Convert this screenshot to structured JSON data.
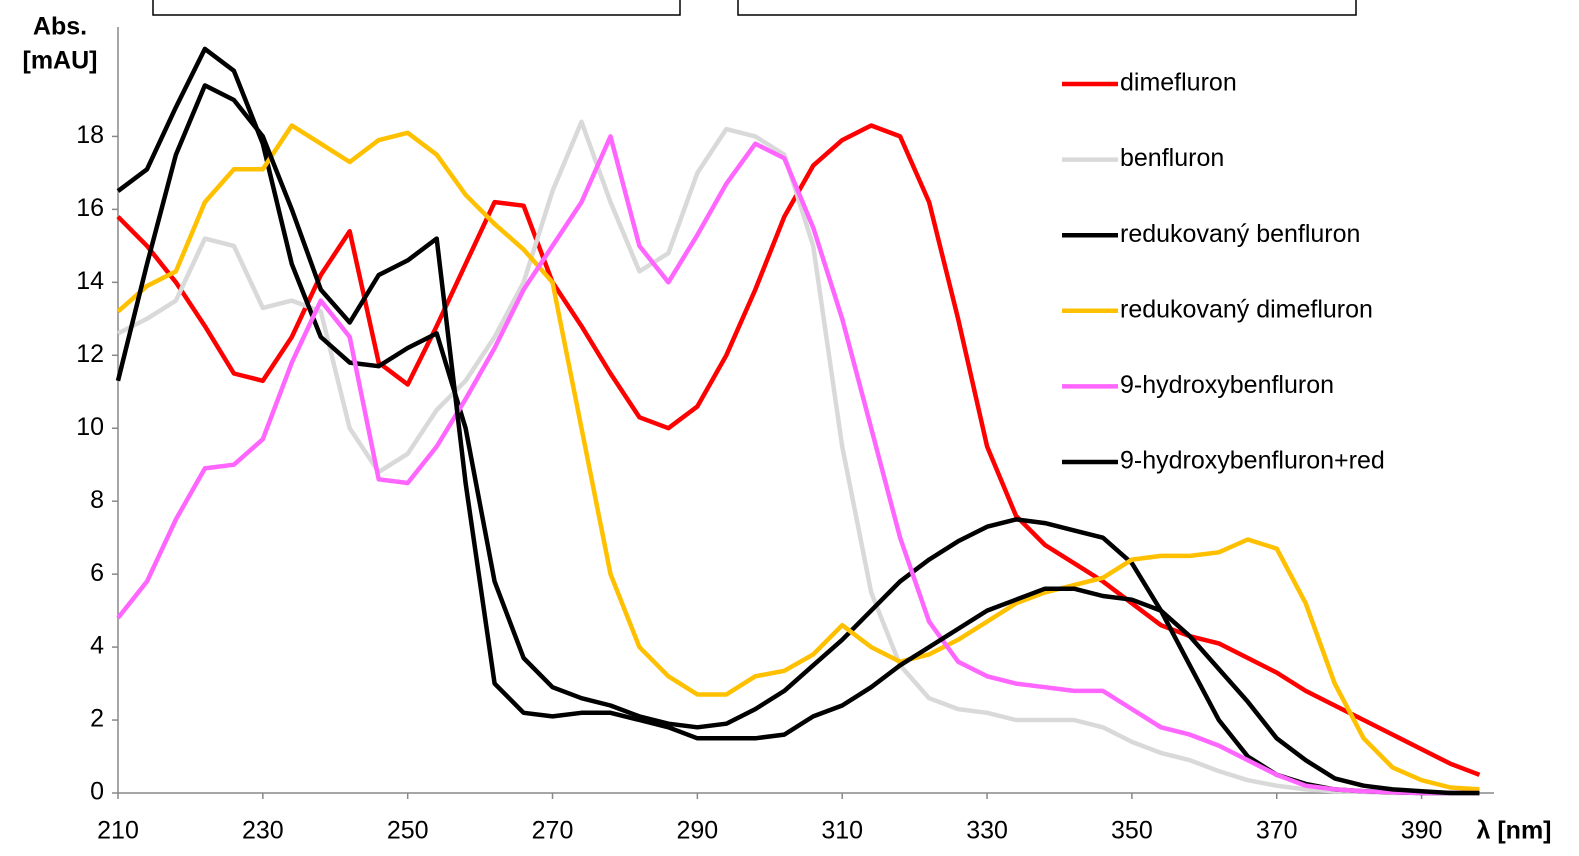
{
  "chart_data": {
    "type": "line",
    "ylabel": [
      "Abs.",
      "[mAU]"
    ],
    "xlabel": "λ [nm]",
    "x": [
      210,
      214,
      218,
      222,
      226,
      230,
      234,
      238,
      242,
      246,
      250,
      254,
      258,
      262,
      266,
      270,
      274,
      278,
      282,
      286,
      290,
      294,
      298,
      302,
      306,
      310,
      314,
      318,
      322,
      326,
      330,
      334,
      338,
      342,
      346,
      350,
      354,
      358,
      362,
      366,
      370,
      374,
      378,
      382,
      386,
      390,
      394,
      398
    ],
    "series": [
      {
        "name": "dimefluron",
        "color": "#ff0000",
        "values": [
          15.8,
          15.0,
          14.0,
          12.8,
          11.5,
          11.3,
          12.5,
          14.2,
          15.4,
          11.8,
          11.2,
          12.8,
          14.5,
          16.2,
          16.1,
          14.0,
          12.8,
          11.5,
          10.3,
          10.0,
          10.6,
          12.0,
          13.8,
          15.8,
          17.2,
          17.9,
          18.3,
          18.0,
          16.2,
          13.0,
          9.5,
          7.6,
          6.8,
          6.3,
          5.8,
          5.2,
          4.6,
          4.3,
          4.1,
          3.7,
          3.3,
          2.8,
          2.4,
          2.0,
          1.6,
          1.2,
          0.8,
          0.5
        ]
      },
      {
        "name": "benfluron",
        "color": "#d9d9d9",
        "values": [
          12.6,
          13.0,
          13.5,
          15.2,
          15.0,
          13.3,
          13.5,
          13.2,
          10.0,
          8.8,
          9.3,
          10.5,
          11.3,
          12.5,
          14.0,
          16.5,
          18.4,
          16.2,
          14.3,
          14.8,
          17.0,
          18.2,
          18.0,
          17.5,
          15.0,
          9.5,
          5.5,
          3.5,
          2.6,
          2.3,
          2.2,
          2.0,
          2.0,
          2.0,
          1.8,
          1.4,
          1.1,
          0.9,
          0.6,
          0.35,
          0.2,
          0.1,
          0.05,
          0.03,
          0,
          0,
          0,
          0
        ]
      },
      {
        "name": "redukovaný benfluron",
        "color": "#000000",
        "values": [
          16.5,
          17.1,
          18.8,
          20.4,
          19.8,
          17.8,
          14.5,
          12.5,
          11.8,
          11.7,
          12.2,
          12.6,
          10.0,
          5.8,
          3.7,
          2.9,
          2.6,
          2.4,
          2.1,
          1.9,
          1.8,
          1.9,
          2.3,
          2.8,
          3.5,
          4.2,
          5.0,
          5.8,
          6.4,
          6.9,
          7.3,
          7.5,
          7.4,
          7.2,
          7.0,
          6.3,
          5.0,
          3.5,
          2.0,
          1.0,
          0.5,
          0.25,
          0.1,
          0.05,
          0.02,
          0,
          0,
          0
        ]
      },
      {
        "name": "redukovaný dimefluron",
        "color": "#ffc000",
        "values": [
          13.2,
          13.9,
          14.3,
          16.2,
          17.1,
          17.1,
          18.3,
          17.8,
          17.3,
          17.9,
          18.1,
          17.5,
          16.4,
          15.6,
          14.9,
          14.0,
          10.0,
          6.0,
          4.0,
          3.2,
          2.7,
          2.7,
          3.2,
          3.35,
          3.8,
          4.6,
          4.0,
          3.6,
          3.8,
          4.2,
          4.7,
          5.2,
          5.5,
          5.7,
          5.9,
          6.4,
          6.5,
          6.5,
          6.6,
          6.95,
          6.7,
          5.2,
          3.0,
          1.5,
          0.7,
          0.35,
          0.15,
          0.1
        ]
      },
      {
        "name": "9-hydroxybenfluron",
        "color": "#ff66ff",
        "values": [
          4.8,
          5.8,
          7.5,
          8.9,
          9.0,
          9.7,
          11.8,
          13.5,
          12.5,
          8.6,
          8.5,
          9.5,
          10.8,
          12.2,
          13.8,
          15.0,
          16.2,
          18.0,
          15.0,
          14.0,
          15.3,
          16.7,
          17.8,
          17.4,
          15.5,
          13.0,
          10.0,
          7.0,
          4.7,
          3.6,
          3.2,
          3.0,
          2.9,
          2.8,
          2.8,
          2.3,
          1.8,
          1.6,
          1.3,
          0.9,
          0.5,
          0.2,
          0.1,
          0.05,
          0.02,
          0,
          0,
          0
        ]
      },
      {
        "name": "9-hydroxybenfluron+red",
        "color": "#000000",
        "values": [
          11.3,
          14.5,
          17.5,
          19.4,
          19.0,
          18.0,
          16.0,
          13.8,
          12.9,
          14.2,
          14.6,
          15.2,
          8.5,
          3.0,
          2.2,
          2.1,
          2.2,
          2.2,
          2.0,
          1.8,
          1.5,
          1.5,
          1.5,
          1.6,
          2.1,
          2.4,
          2.9,
          3.5,
          4.0,
          4.5,
          5.0,
          5.3,
          5.6,
          5.6,
          5.4,
          5.3,
          5.0,
          4.3,
          3.4,
          2.5,
          1.5,
          0.9,
          0.4,
          0.2,
          0.1,
          0.05,
          0,
          0
        ]
      }
    ],
    "xlim": [
      210,
      400
    ],
    "ylim": [
      0,
      21
    ],
    "xticks": [
      210,
      230,
      250,
      270,
      290,
      310,
      330,
      350,
      370,
      390
    ],
    "yticks": [
      0,
      2,
      4,
      6,
      8,
      10,
      12,
      14,
      16,
      18
    ],
    "legend": "right"
  }
}
